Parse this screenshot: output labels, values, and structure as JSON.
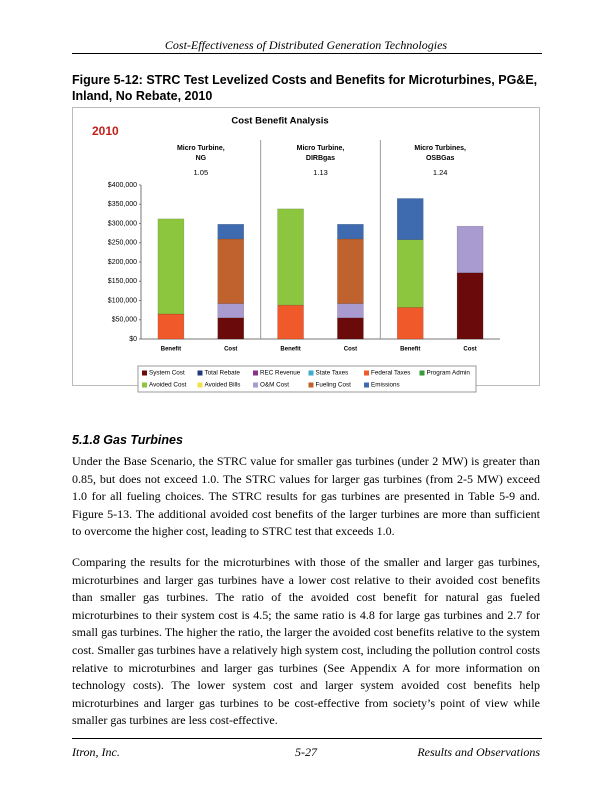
{
  "header": {
    "title": "Cost-Effectiveness of Distributed Generation Technologies"
  },
  "figure": {
    "caption": "Figure 5-12:  STRC Test Levelized Costs and Benefits for Microturbines, PG&E, Inland, No Rebate, 2010"
  },
  "chart_data": {
    "type": "stacked-bar",
    "title": "Cost Benefit Analysis",
    "year_label": "2010",
    "groups": [
      {
        "label_lines": [
          "Micro Turbine,",
          "NG"
        ],
        "ratio": 1.05
      },
      {
        "label_lines": [
          "Micro Turbine,",
          "DIRBgas"
        ],
        "ratio": 1.13
      },
      {
        "label_lines": [
          "Micro Turbines,",
          "OSBGas"
        ],
        "ratio": 1.24
      }
    ],
    "categories": [
      "Benefit",
      "Cost",
      "Benefit",
      "Cost",
      "Benefit",
      "Cost"
    ],
    "series": [
      {
        "name": "System Cost",
        "color": "#6b0a0a",
        "values": [
          null,
          55000,
          null,
          55000,
          null,
          172000
        ]
      },
      {
        "name": "Total Rebate",
        "color": "#1f3a7a",
        "values": [
          null,
          null,
          null,
          null,
          null,
          null
        ]
      },
      {
        "name": "REC Revenue",
        "color": "#8b2f8b",
        "values": [
          null,
          null,
          null,
          null,
          null,
          null
        ]
      },
      {
        "name": "State Taxes",
        "color": "#3aaccc",
        "values": [
          null,
          null,
          null,
          null,
          null,
          null
        ]
      },
      {
        "name": "Federal Taxes",
        "color": "#f05a2a",
        "values": [
          65000,
          null,
          88000,
          null,
          82000,
          null
        ]
      },
      {
        "name": "Program Admin",
        "color": "#3a9a3a",
        "values": [
          null,
          null,
          null,
          null,
          null,
          null
        ]
      },
      {
        "name": "Avoided Cost",
        "color": "#8cc63f",
        "values": [
          247000,
          null,
          250000,
          null,
          176000,
          null
        ]
      },
      {
        "name": "Avoided Bills",
        "color": "#f2e24a",
        "values": [
          null,
          null,
          null,
          null,
          null,
          null
        ]
      },
      {
        "name": "O&M Cost",
        "color": "#a99bcf",
        "values": [
          null,
          37000,
          null,
          37000,
          null,
          121000
        ]
      },
      {
        "name": "Fueling Cost",
        "color": "#c0622e",
        "values": [
          null,
          168000,
          null,
          168000,
          null,
          null
        ]
      },
      {
        "name": "Emissions",
        "color": "#3e6ab0",
        "values": [
          null,
          38000,
          null,
          38000,
          107000,
          null
        ]
      }
    ],
    "ylim": [
      0,
      400000
    ],
    "yticks": [
      {
        "value": 0,
        "label": "$0"
      },
      {
        "value": 50000,
        "label": "$50,000"
      },
      {
        "value": 100000,
        "label": "$100,000"
      },
      {
        "value": 150000,
        "label": "$150,000"
      },
      {
        "value": 200000,
        "label": "$200,000"
      },
      {
        "value": 250000,
        "label": "$250,000"
      },
      {
        "value": 300000,
        "label": "$300,000"
      },
      {
        "value": 350000,
        "label": "$350,000"
      },
      {
        "value": 400000,
        "label": "$400,000"
      }
    ],
    "grid": false
  },
  "section": {
    "heading": "5.1.8  Gas Turbines",
    "paragraphs": [
      "Under the Base Scenario, the STRC value for smaller gas turbines (under 2 MW) is greater than 0.85, but does not exceed 1.0.  The STRC values for larger gas turbines (from 2-5 MW) exceed 1.0 for all fueling choices.  The STRC results for gas turbines are presented in Table 5-9 and. Figure 5-13.  The additional avoided cost benefits of the larger turbines are more than sufficient to overcome the higher cost, leading to STRC test that exceeds 1.0.",
      "Comparing the results for the microturbines with those of the smaller and larger gas turbines, microturbines and larger gas turbines have a lower cost relative to their avoided cost benefits than smaller gas turbines.  The ratio of the avoided cost benefit for natural gas fueled microturbines to their system cost is 4.5; the same ratio is 4.8 for large gas turbines and 2.7 for small gas turbines.  The higher the ratio, the larger the avoided cost benefits relative to the system cost.  Smaller gas turbines have a relatively high system cost, including the pollution control costs relative to microturbines and larger gas turbines (See Appendix A for more information on technology costs).  The lower system cost and larger system avoided cost benefits help microturbines and larger gas turbines to be cost-effective from society’s point of view while smaller gas turbines are less cost-effective."
    ]
  },
  "footer": {
    "left": "Itron, Inc.",
    "center": "5-27",
    "right": "Results and Observations"
  }
}
